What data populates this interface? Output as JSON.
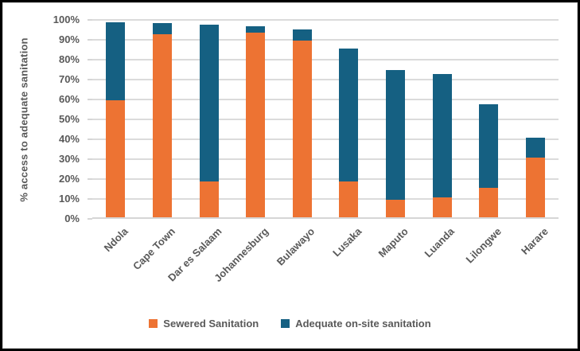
{
  "chart_data": {
    "type": "bar",
    "stacked": true,
    "title": "",
    "xlabel": "",
    "ylabel": "% access to adequate sanitation",
    "categories": [
      "Ndola",
      "Cape Town",
      "Dar es Salaam",
      "Johannesburg",
      "Bulawayo",
      "Lusaka",
      "Maputo",
      "Luanda",
      "Lilongwe",
      "Harare"
    ],
    "series": [
      {
        "name": "Sewered Sanitation",
        "color": "#ED7333",
        "values": [
          59,
          92,
          18,
          93,
          89,
          18,
          9,
          10,
          15,
          30
        ]
      },
      {
        "name": "Adequate on-site sanitation",
        "color": "#156082",
        "values": [
          39,
          5.5,
          79,
          3,
          5.5,
          67,
          65,
          62,
          42,
          10
        ]
      }
    ],
    "stack_totals": [
      98,
      97.5,
      97,
      96,
      94.5,
      85,
      74,
      72,
      57,
      40
    ],
    "ylim": [
      0,
      100
    ],
    "ytick_step": 10,
    "ytick_labels": [
      "0%",
      "10%",
      "20%",
      "30%",
      "40%",
      "50%",
      "60%",
      "70%",
      "80%",
      "90%",
      "100%"
    ],
    "grid": "horizontal",
    "legend_position": "bottom",
    "colors": {
      "gridline": "#DBDBDB",
      "axis_line": "#D6D6D6",
      "label_text": "#595959",
      "frame_border": "#000000",
      "chart_border": "#D9D9D9",
      "background": "#FFFFFF"
    }
  }
}
